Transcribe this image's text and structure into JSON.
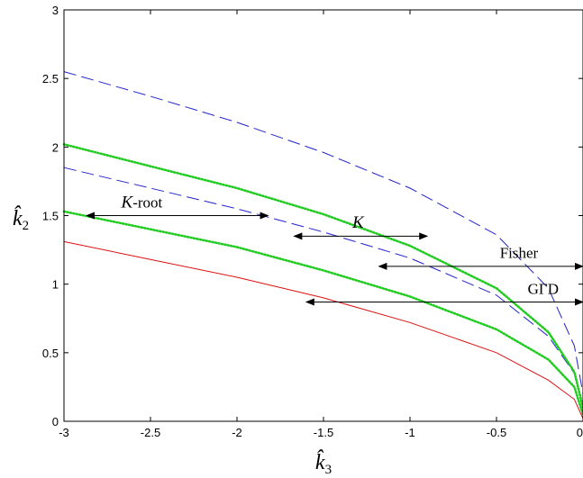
{
  "chart_data": {
    "type": "line",
    "xlabel": "k̂3",
    "ylabel": "k̂2",
    "xlim": [
      -3,
      0
    ],
    "ylim": [
      0,
      3
    ],
    "xticks": [
      "-3",
      "-2.5",
      "-2",
      "-1.5",
      "-1",
      "-0.5",
      "0"
    ],
    "yticks": [
      "0",
      "0.5",
      "1",
      "1.5",
      "2",
      "2.5",
      "3"
    ],
    "grid": false,
    "series": [
      {
        "color": "#2222cc",
        "style": "dashed",
        "points": [
          [
            -3,
            2.55
          ],
          [
            -2.5,
            2.37
          ],
          [
            -2,
            2.18
          ],
          [
            -1.5,
            1.96
          ],
          [
            -1,
            1.7
          ],
          [
            -0.5,
            1.36
          ],
          [
            -0.2,
            0.97
          ],
          [
            -0.05,
            0.55
          ],
          [
            0,
            0.2
          ]
        ]
      },
      {
        "color": "#2222cc",
        "style": "dashed",
        "points": [
          [
            -3,
            1.85
          ],
          [
            -2.5,
            1.7
          ],
          [
            -2,
            1.55
          ],
          [
            -1.5,
            1.38
          ],
          [
            -1,
            1.19
          ],
          [
            -0.5,
            0.92
          ],
          [
            -0.2,
            0.62
          ],
          [
            -0.05,
            0.35
          ],
          [
            0,
            0.1
          ]
        ]
      },
      {
        "color": "#22cc22",
        "style": "dotted",
        "points": [
          [
            -3,
            2.02
          ],
          [
            -2.5,
            1.86
          ],
          [
            -2,
            1.7
          ],
          [
            -1.5,
            1.51
          ],
          [
            -1,
            1.28
          ],
          [
            -0.5,
            0.97
          ],
          [
            -0.2,
            0.65
          ],
          [
            -0.05,
            0.36
          ],
          [
            0,
            0.1
          ]
        ]
      },
      {
        "color": "#22cc22",
        "style": "dotted",
        "points": [
          [
            -3,
            1.53
          ],
          [
            -2.5,
            1.4
          ],
          [
            -2,
            1.27
          ],
          [
            -1.5,
            1.1
          ],
          [
            -1,
            0.91
          ],
          [
            -0.5,
            0.67
          ],
          [
            -0.2,
            0.45
          ],
          [
            -0.05,
            0.25
          ],
          [
            0,
            0.05
          ]
        ]
      },
      {
        "color": "#dd1111",
        "style": "solid",
        "points": [
          [
            -3,
            1.31
          ],
          [
            -2.5,
            1.18
          ],
          [
            -2,
            1.05
          ],
          [
            -1.5,
            0.9
          ],
          [
            -1,
            0.72
          ],
          [
            -0.5,
            0.5
          ],
          [
            -0.2,
            0.3
          ],
          [
            -0.05,
            0.16
          ],
          [
            0,
            0.02
          ]
        ]
      }
    ],
    "annotations": [
      {
        "label": "K-root",
        "label_main": "K",
        "label_suffix": "-root",
        "x1": -2.87,
        "x2": -1.82,
        "y": 1.5,
        "label_x": -2.55,
        "label_y": 1.56,
        "style": "italic-prefix"
      },
      {
        "label": "K",
        "label_main": "K",
        "label_suffix": "",
        "x1": -1.67,
        "x2": -0.9,
        "y": 1.35,
        "label_x": -1.3,
        "label_y": 1.41,
        "style": "italic"
      },
      {
        "label": "Fisher",
        "label_main": "Fisher",
        "label_suffix": "",
        "x1": -1.18,
        "x2": 0,
        "y": 1.13,
        "label_x": -0.37,
        "label_y": 1.19,
        "style": "plain"
      },
      {
        "label": "GΓD",
        "label_main": "GΓD",
        "label_suffix": "",
        "x1": -1.6,
        "x2": 0,
        "y": 0.87,
        "label_x": -0.23,
        "label_y": 0.93,
        "style": "plain"
      }
    ]
  }
}
